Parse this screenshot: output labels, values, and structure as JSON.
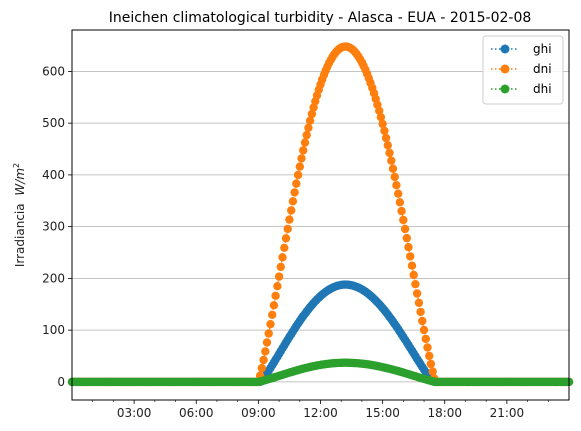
{
  "chart_data": {
    "type": "scatter",
    "title": "Ineichen climatological turbidity - Alasca - EUA - 2015-02-08",
    "xlabel": "",
    "ylabel": "Irradiancia",
    "ylabel_unit": "W/m",
    "ylabel_unit_sup": "2",
    "ylim": [
      -35,
      680
    ],
    "xlim_hours": [
      0,
      24
    ],
    "grid": "y",
    "legend_position": "top-right",
    "x_tick_labels": [
      "03:00",
      "06:00",
      "09:00",
      "12:00",
      "15:00",
      "18:00",
      "21:00"
    ],
    "y_tick_labels": [
      "0",
      "100",
      "200",
      "300",
      "400",
      "500",
      "600"
    ],
    "sample_interval_minutes": 5,
    "series": [
      {
        "name": "ghi",
        "color": "#1f77b4",
        "sunrise_hour": 9.1,
        "sunset_hour": 17.45,
        "peak_hour": 13.2,
        "peak_value": 188
      },
      {
        "name": "dni",
        "color": "#ff7f0e",
        "sunrise_hour": 9.0,
        "sunset_hour": 17.55,
        "peak_hour": 13.2,
        "peak_value": 648
      },
      {
        "name": "dhi",
        "color": "#2ca02c",
        "sunrise_hour": 9.0,
        "sunset_hour": 17.55,
        "peak_hour": 13.2,
        "peak_value": 37
      }
    ]
  }
}
